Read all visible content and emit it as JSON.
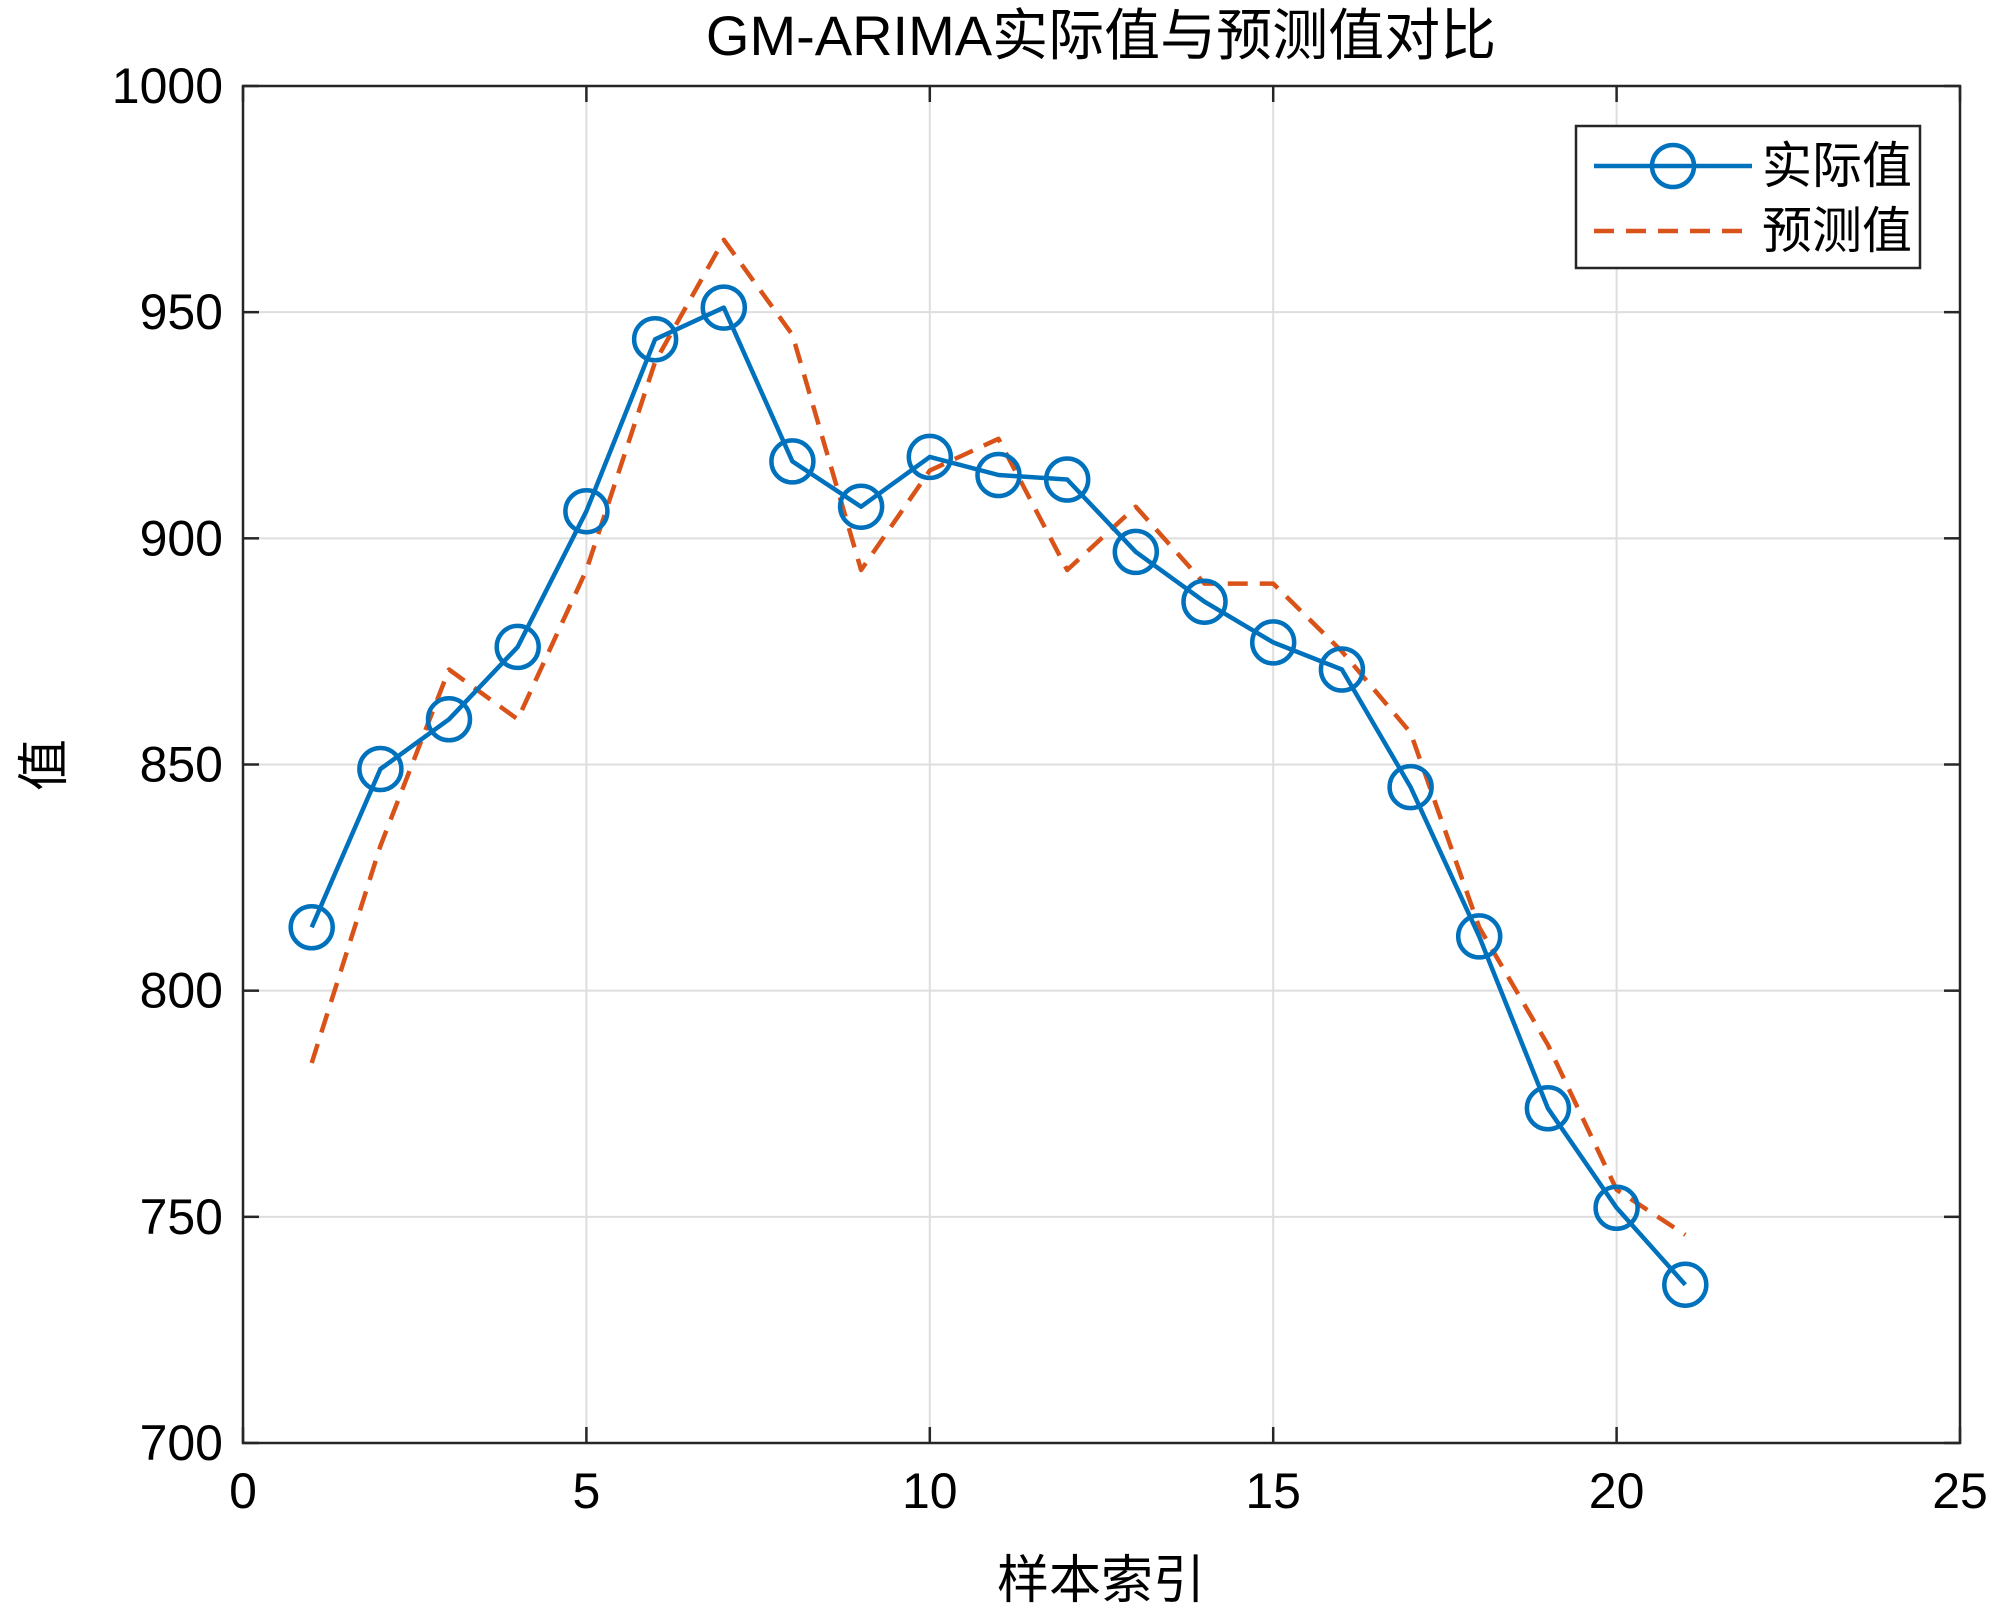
{
  "chart_data": {
    "type": "line",
    "title": "GM-ARIMA实际值与预测值对比",
    "xlabel": "样本索引",
    "ylabel": "值",
    "xlim": [
      0,
      25
    ],
    "ylim": [
      700,
      1000
    ],
    "xticks": [
      0,
      5,
      10,
      15,
      20,
      25
    ],
    "yticks": [
      700,
      750,
      800,
      850,
      900,
      950,
      1000
    ],
    "grid": true,
    "legend_position": "top-right",
    "x": [
      1,
      2,
      3,
      4,
      5,
      6,
      7,
      8,
      9,
      10,
      11,
      12,
      13,
      14,
      15,
      16,
      17,
      18,
      19,
      20,
      21
    ],
    "series": [
      {
        "name": "实际值",
        "color": "#0072BD",
        "line_style": "solid",
        "marker": "circle",
        "values": [
          814,
          849,
          860,
          876,
          906,
          944,
          951,
          917,
          907,
          918,
          914,
          913,
          897,
          886,
          877,
          871,
          845,
          812,
          774,
          752,
          735
        ]
      },
      {
        "name": "预测值",
        "color": "#D95319",
        "line_style": "dashed",
        "marker": "none",
        "values": [
          784,
          832,
          871,
          860,
          893,
          939,
          966,
          945,
          893,
          915,
          922,
          893,
          907,
          890,
          890,
          875,
          857,
          814,
          788,
          756,
          746
        ]
      }
    ]
  }
}
